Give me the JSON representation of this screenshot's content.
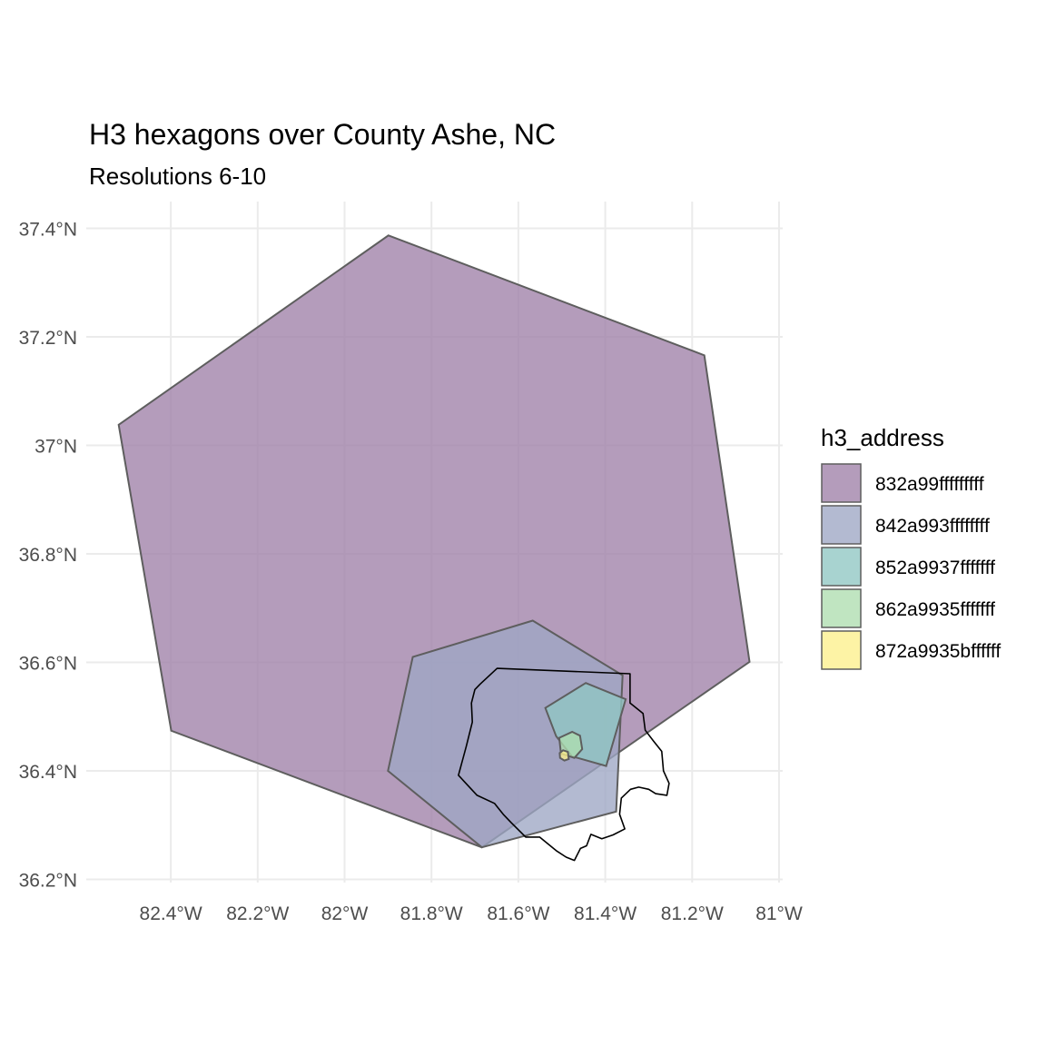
{
  "chart_data": {
    "type": "map",
    "title": "H3 hexagons over County Ashe, NC",
    "subtitle": "Resolutions 6-10",
    "xlim": [
      -82.6,
      -80.99
    ],
    "ylim": [
      36.19,
      37.46
    ],
    "x_ticks": [
      -82.4,
      -82.2,
      -82.0,
      -81.8,
      -81.6,
      -81.4,
      -81.2,
      -81.0
    ],
    "x_tick_labels": [
      "82.4°W",
      "82.2°W",
      "82°W",
      "81.8°W",
      "81.6°W",
      "81.4°W",
      "81.2°W",
      "81°W"
    ],
    "y_ticks": [
      36.2,
      36.4,
      36.6,
      36.8,
      37.0,
      37.2,
      37.4
    ],
    "y_tick_labels": [
      "36.2°N",
      "36.4°N",
      "36.6°N",
      "36.8°N",
      "37°N",
      "37.2°N",
      "37.4°N"
    ],
    "grid": true,
    "legend": {
      "title": "h3_address",
      "position": "right"
    },
    "hexagons": [
      {
        "name": "832a99fffffffff",
        "color": "#9f80a8",
        "coords": [
          [
            -81.899,
            37.387
          ],
          [
            -81.172,
            37.166
          ],
          [
            -81.068,
            36.601
          ],
          [
            -81.684,
            36.259
          ],
          [
            -82.399,
            36.474
          ],
          [
            -82.52,
            37.038
          ]
        ]
      },
      {
        "name": "842a993ffffffff",
        "color": "#9da7c4",
        "coords": [
          [
            -81.567,
            36.677
          ],
          [
            -81.36,
            36.576
          ],
          [
            -81.375,
            36.325
          ],
          [
            -81.684,
            36.259
          ],
          [
            -81.9,
            36.4
          ],
          [
            -81.843,
            36.61
          ]
        ]
      },
      {
        "name": "852a9937fffffff",
        "color": "#90c7c3",
        "coords": [
          [
            -81.445,
            36.562
          ],
          [
            -81.353,
            36.532
          ],
          [
            -81.398,
            36.409
          ],
          [
            -81.477,
            36.427
          ],
          [
            -81.513,
            36.464
          ],
          [
            -81.538,
            36.516
          ]
        ]
      },
      {
        "name": "862a9935fffffff",
        "color": "#aedeaf",
        "coords": [
          [
            -81.476,
            36.472
          ],
          [
            -81.458,
            36.465
          ],
          [
            -81.453,
            36.44
          ],
          [
            -81.471,
            36.424
          ],
          [
            -81.502,
            36.432
          ],
          [
            -81.506,
            36.461
          ]
        ]
      },
      {
        "name": "872a9935bffffff",
        "color": "#fdf08c",
        "coords": [
          [
            -81.497,
            36.438
          ],
          [
            -81.486,
            36.435
          ],
          [
            -81.484,
            36.422
          ],
          [
            -81.494,
            36.419
          ],
          [
            -81.504,
            36.424
          ],
          [
            -81.505,
            36.433
          ]
        ]
      }
    ],
    "county_outline": [
      [
        -81.649,
        36.589
      ],
      [
        -81.343,
        36.579
      ],
      [
        -81.343,
        36.525
      ],
      [
        -81.313,
        36.506
      ],
      [
        -81.308,
        36.475
      ],
      [
        -81.289,
        36.455
      ],
      [
        -81.27,
        36.436
      ],
      [
        -81.266,
        36.4
      ],
      [
        -81.253,
        36.377
      ],
      [
        -81.258,
        36.355
      ],
      [
        -81.284,
        36.358
      ],
      [
        -81.3,
        36.366
      ],
      [
        -81.323,
        36.37
      ],
      [
        -81.342,
        36.366
      ],
      [
        -81.363,
        36.35
      ],
      [
        -81.367,
        36.32
      ],
      [
        -81.355,
        36.293
      ],
      [
        -81.382,
        36.282
      ],
      [
        -81.408,
        36.275
      ],
      [
        -81.433,
        36.283
      ],
      [
        -81.443,
        36.262
      ],
      [
        -81.457,
        36.257
      ],
      [
        -81.471,
        36.235
      ],
      [
        -81.49,
        36.241
      ],
      [
        -81.513,
        36.253
      ],
      [
        -81.551,
        36.278
      ],
      [
        -81.583,
        36.278
      ],
      [
        -81.617,
        36.305
      ],
      [
        -81.635,
        36.32
      ],
      [
        -81.655,
        36.34
      ],
      [
        -81.695,
        36.355
      ],
      [
        -81.738,
        36.392
      ],
      [
        -81.72,
        36.445
      ],
      [
        -81.706,
        36.49
      ],
      [
        -81.708,
        36.525
      ],
      [
        -81.7,
        36.55
      ],
      [
        -81.688,
        36.56
      ],
      [
        -81.649,
        36.589
      ]
    ]
  }
}
